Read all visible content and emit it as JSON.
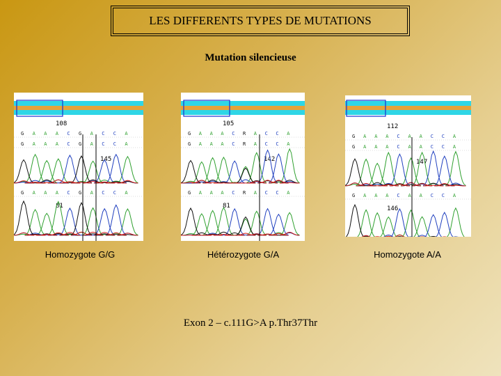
{
  "title": "LES DIFFERENTS TYPES DE MUTATIONS",
  "subtitle": "Mutation silencieuse",
  "panels": [
    {
      "caption": "Homozygote G/G",
      "pos_top": "108",
      "pos_mid": "145",
      "pos_bot": "81",
      "bases_top": [
        "G",
        "A",
        "A",
        "A",
        "C",
        "G",
        "A",
        "C",
        "C",
        "A"
      ],
      "bases_mid": [
        "G",
        "A",
        "A",
        "A",
        "C",
        "G",
        "A",
        "C",
        "C",
        "A"
      ],
      "bases_bot": [
        "G",
        "A",
        "A",
        "A",
        "C",
        "G",
        "A",
        "C",
        "C",
        "A"
      ]
    },
    {
      "caption": "Hétérozygote G/A",
      "pos_top": "105",
      "pos_mid": "142",
      "pos_bot": "81",
      "bases_top": [
        "G",
        "A",
        "A",
        "A",
        "C",
        "R",
        "A",
        "C",
        "C",
        "A"
      ],
      "bases_mid": [
        "G",
        "A",
        "A",
        "A",
        "C",
        "R",
        "A",
        "C",
        "C",
        "A"
      ],
      "bases_bot": [
        "G",
        "A",
        "A",
        "A",
        "C",
        "R",
        "A",
        "C",
        "C",
        "A"
      ]
    },
    {
      "caption": "Homozygote A/A",
      "pos_top": "112",
      "pos_mid": "147",
      "pos_bot": "146",
      "bases_top": [
        "G",
        "A",
        "A",
        "A",
        "C",
        "A",
        "A",
        "C",
        "C",
        "A"
      ],
      "bases_mid": [
        "G",
        "A",
        "A",
        "A",
        "C",
        "A",
        "A",
        "C",
        "C",
        "A"
      ],
      "bases_bot": [
        "G",
        "A",
        "A",
        "A",
        "C",
        "A",
        "A",
        "C",
        "C",
        "A"
      ]
    }
  ],
  "footer": "Exon 2 – c.111G>A  p.Thr37Thr",
  "colors": {
    "A": "#2fa02f",
    "C": "#1f3fbf",
    "G": "#111111",
    "T": "#d42020",
    "R": "#111111",
    "stripe_cyan": "#2fd6e6",
    "stripe_orange": "#e6a23a",
    "select_box": "#1a2fd0"
  }
}
